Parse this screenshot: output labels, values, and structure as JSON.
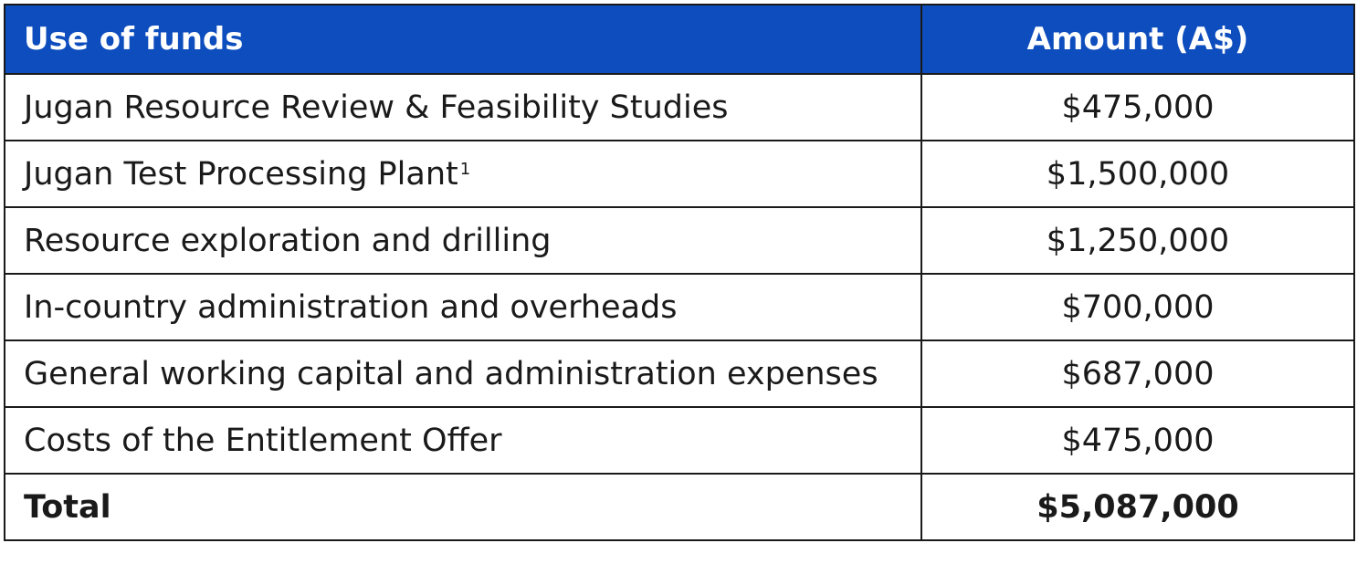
{
  "table": {
    "headers": {
      "use_of_funds": "Use of funds",
      "amount": "Amount (A$)"
    },
    "rows": [
      {
        "item": "Jugan Resource Review & Feasibility Studies",
        "footnote": "",
        "amount": "$475,000"
      },
      {
        "item": "Jugan Test Processing Plant",
        "footnote": "1",
        "amount": "$1,500,000"
      },
      {
        "item": "Resource exploration and drilling",
        "footnote": "",
        "amount": "$1,250,000"
      },
      {
        "item": "In-country administration and overheads",
        "footnote": "",
        "amount": "$700,000"
      },
      {
        "item": "General working capital and administration expenses",
        "footnote": "",
        "amount": "$687,000"
      },
      {
        "item": "Costs of the Entitlement Offer",
        "footnote": "",
        "amount": "$475,000"
      }
    ],
    "total": {
      "label": "Total",
      "amount": "$5,087,000"
    }
  },
  "colors": {
    "header_background": "#0d4dbd",
    "header_text": "#ffffff",
    "border": "#1a1a1a"
  }
}
